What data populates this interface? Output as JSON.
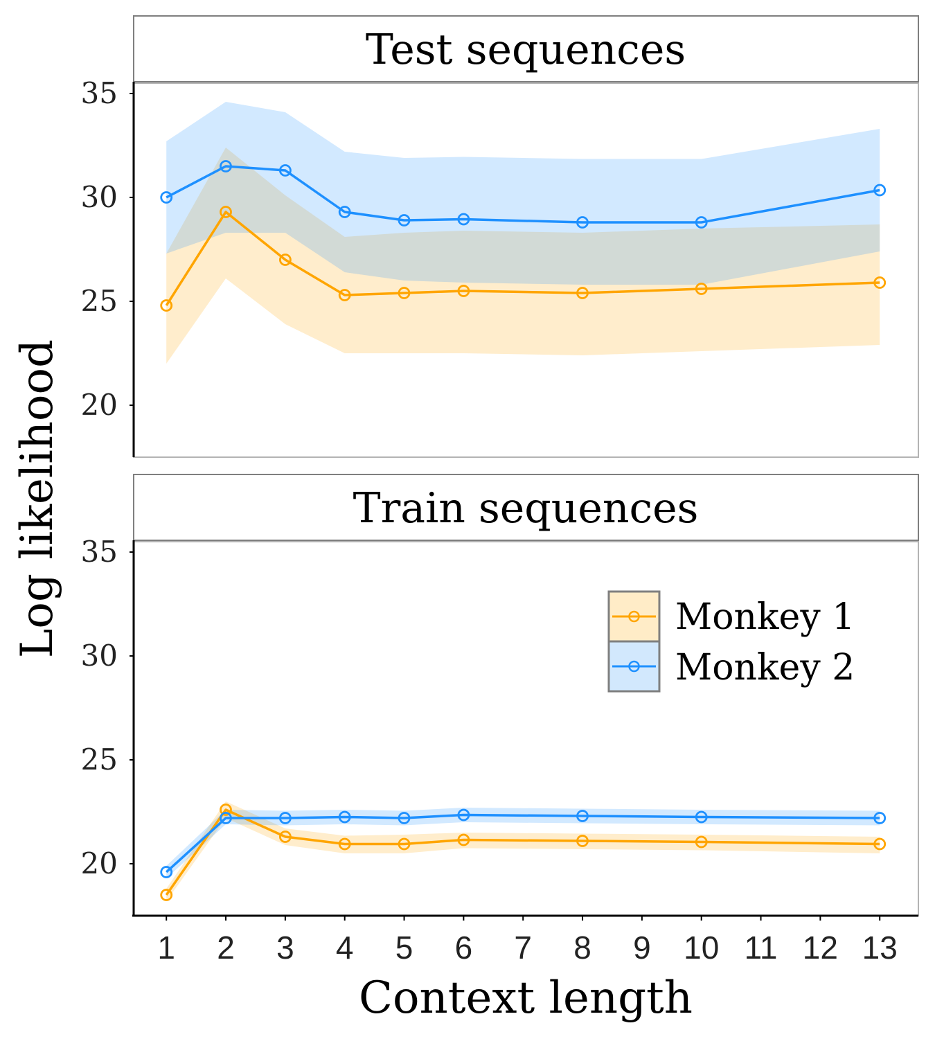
{
  "chart_data": {
    "type": "line",
    "xlabel": "Context length",
    "ylabel": "Log likelihood",
    "x_ticks": [
      "1",
      "2",
      "3",
      "4",
      "5",
      "6",
      "7",
      "8",
      "9",
      "10",
      "11",
      "12",
      "13"
    ],
    "xlim": [
      0.45,
      13.65
    ],
    "y_ticks": [
      20,
      25,
      30,
      35
    ],
    "ylim": [
      17.5,
      35.5
    ],
    "legend": {
      "position": "right"
    },
    "grid": false,
    "panels": [
      {
        "title": "Test sequences",
        "series": [
          {
            "name": "Monkey 1",
            "color": "#FFA500",
            "x": [
              1,
              2,
              3,
              4,
              5,
              6,
              8,
              10,
              13
            ],
            "y": [
              24.8,
              29.3,
              27.0,
              25.3,
              25.4,
              25.5,
              25.4,
              25.6,
              25.9
            ],
            "lower": [
              22.0,
              26.1,
              23.9,
              22.5,
              22.5,
              22.5,
              22.4,
              22.6,
              22.9
            ],
            "upper": [
              27.3,
              32.4,
              30.1,
              28.1,
              28.3,
              28.4,
              28.3,
              28.5,
              28.7
            ]
          },
          {
            "name": "Monkey 2",
            "color": "#1E90FF",
            "x": [
              1,
              2,
              3,
              4,
              5,
              6,
              8,
              10,
              13
            ],
            "y": [
              30.0,
              31.5,
              31.3,
              29.3,
              28.9,
              28.95,
              28.8,
              28.8,
              30.35
            ],
            "lower": [
              27.3,
              28.3,
              28.3,
              26.4,
              26.0,
              25.9,
              25.8,
              25.8,
              27.4
            ],
            "upper": [
              32.7,
              34.6,
              34.1,
              32.2,
              31.9,
              31.95,
              31.85,
              31.85,
              33.3
            ]
          }
        ]
      },
      {
        "title": "Train sequences",
        "series": [
          {
            "name": "Monkey 1",
            "color": "#FFA500",
            "x": [
              1,
              2,
              3,
              4,
              5,
              6,
              8,
              10,
              13
            ],
            "y": [
              18.5,
              22.6,
              21.3,
              20.95,
              20.95,
              21.15,
              21.1,
              21.05,
              20.95
            ],
            "lower": [
              18.2,
              22.2,
              20.9,
              20.5,
              20.5,
              20.75,
              20.7,
              20.65,
              20.5
            ],
            "upper": [
              18.8,
              23.0,
              21.7,
              21.35,
              21.4,
              21.5,
              21.45,
              21.4,
              21.3
            ]
          },
          {
            "name": "Monkey 2",
            "color": "#1E90FF",
            "x": [
              1,
              2,
              3,
              4,
              5,
              6,
              8,
              10,
              13
            ],
            "y": [
              19.6,
              22.2,
              22.2,
              22.25,
              22.2,
              22.35,
              22.3,
              22.25,
              22.2
            ],
            "lower": [
              19.3,
              21.9,
              21.85,
              21.9,
              21.85,
              22.0,
              21.95,
              21.9,
              21.85
            ],
            "upper": [
              19.9,
              22.6,
              22.55,
              22.6,
              22.55,
              22.7,
              22.65,
              22.6,
              22.55
            ]
          }
        ]
      }
    ]
  }
}
